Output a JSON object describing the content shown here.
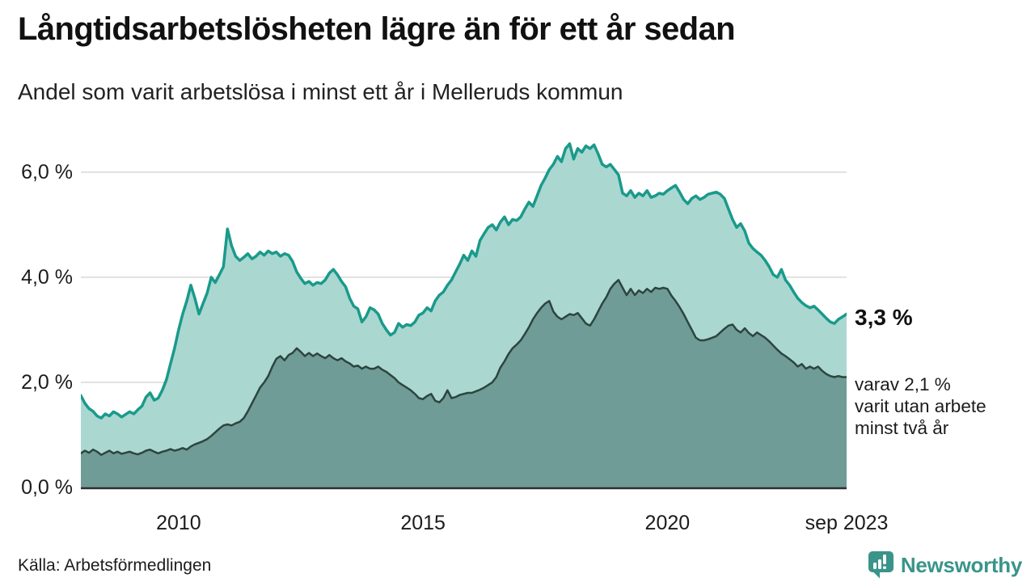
{
  "header": {
    "title": "Långtidsarbetslösheten lägre än för ett år sedan",
    "subtitle": "Andel som varit arbetslösa i minst ett år i Melleruds kommun"
  },
  "annotations": {
    "total_end_label": "3,3 %",
    "detail_line1": "varav 2,1 %",
    "detail_line2": "varit utan arbete",
    "detail_line3": "minst två år"
  },
  "footer": {
    "source": "Källa: Arbetsförmedlingen",
    "logo_text": "Newsworthy"
  },
  "colors": {
    "accent_teal": "#1a9a8b",
    "light_fill": "#abd7d1",
    "dark_fill": "#6f9c96",
    "dark_line": "#2d453f",
    "gridline": "#d9d9d9",
    "axis_line": "#2e2e2e",
    "logo_teal": "#3a948a",
    "text": "#1a1a1a"
  },
  "chart_data": {
    "type": "area",
    "title": "Långtidsarbetslösheten lägre än för ett år sedan",
    "subtitle": "Andel som varit arbetslösa i minst ett år i Melleruds kommun",
    "unit": "%",
    "frequency": "monthly",
    "x_start": "2008-01",
    "x_end": "2023-09",
    "ylim": [
      0,
      6.8
    ],
    "grid": true,
    "legend_position": "none",
    "y_ticks": [
      {
        "label": "6,0 %",
        "value": 6.0
      },
      {
        "label": "4,0 %",
        "value": 4.0
      },
      {
        "label": "2,0 %",
        "value": 2.0
      },
      {
        "label": "0,0 %",
        "value": 0.0
      }
    ],
    "x_ticks": [
      {
        "label": "2010",
        "month_index": 24
      },
      {
        "label": "2015",
        "month_index": 84
      },
      {
        "label": "2020",
        "month_index": 144
      },
      {
        "label": "sep 2023",
        "month_index": 188
      }
    ],
    "series": [
      {
        "name": "Andel som varit arbetslösa minst ett år",
        "end_value": 3.3,
        "end_value_label": "3,3 %",
        "line_color": "#1a9a8b",
        "fill_color": "#abd7d1",
        "line_width": 3.5,
        "values": [
          1.75,
          1.6,
          1.5,
          1.45,
          1.36,
          1.32,
          1.4,
          1.36,
          1.44,
          1.4,
          1.34,
          1.39,
          1.44,
          1.4,
          1.48,
          1.55,
          1.72,
          1.8,
          1.66,
          1.7,
          1.85,
          2.05,
          2.35,
          2.65,
          3.0,
          3.3,
          3.55,
          3.85,
          3.6,
          3.3,
          3.5,
          3.7,
          4.0,
          3.9,
          4.05,
          4.2,
          4.92,
          4.6,
          4.4,
          4.32,
          4.38,
          4.45,
          4.35,
          4.4,
          4.48,
          4.42,
          4.5,
          4.45,
          4.48,
          4.4,
          4.45,
          4.42,
          4.3,
          4.1,
          3.98,
          3.88,
          3.92,
          3.85,
          3.9,
          3.88,
          3.95,
          4.08,
          4.15,
          4.05,
          3.92,
          3.82,
          3.6,
          3.45,
          3.4,
          3.15,
          3.25,
          3.42,
          3.38,
          3.3,
          3.12,
          3.0,
          2.9,
          2.95,
          3.12,
          3.05,
          3.1,
          3.08,
          3.15,
          3.28,
          3.32,
          3.42,
          3.36,
          3.55,
          3.66,
          3.72,
          3.85,
          3.95,
          4.1,
          4.25,
          4.42,
          4.32,
          4.5,
          4.4,
          4.7,
          4.83,
          4.95,
          5.0,
          4.9,
          5.05,
          5.15,
          5.0,
          5.1,
          5.08,
          5.15,
          5.3,
          5.43,
          5.35,
          5.55,
          5.75,
          5.89,
          6.05,
          6.15,
          6.3,
          6.2,
          6.45,
          6.54,
          6.25,
          6.45,
          6.38,
          6.5,
          6.45,
          6.52,
          6.35,
          6.15,
          6.1,
          6.15,
          6.05,
          5.95,
          5.6,
          5.55,
          5.65,
          5.52,
          5.6,
          5.55,
          5.65,
          5.52,
          5.55,
          5.6,
          5.58,
          5.65,
          5.7,
          5.75,
          5.62,
          5.48,
          5.4,
          5.5,
          5.55,
          5.48,
          5.52,
          5.58,
          5.6,
          5.62,
          5.58,
          5.5,
          5.3,
          5.1,
          4.95,
          5.02,
          4.88,
          4.65,
          4.55,
          4.48,
          4.42,
          4.32,
          4.2,
          4.05,
          4.0,
          4.15,
          3.95,
          3.85,
          3.72,
          3.6,
          3.52,
          3.46,
          3.42,
          3.45,
          3.38,
          3.3,
          3.22,
          3.15,
          3.12,
          3.2,
          3.25,
          3.3
        ]
      },
      {
        "name": "varav utan arbete minst två år",
        "end_value": 2.1,
        "end_value_label": "2,1 %",
        "line_color": "#2d453f",
        "fill_color": "#6f9c96",
        "line_width": 2.5,
        "values": [
          0.65,
          0.7,
          0.66,
          0.72,
          0.68,
          0.62,
          0.66,
          0.7,
          0.65,
          0.68,
          0.64,
          0.66,
          0.68,
          0.65,
          0.63,
          0.66,
          0.7,
          0.72,
          0.68,
          0.65,
          0.68,
          0.7,
          0.73,
          0.7,
          0.72,
          0.75,
          0.72,
          0.78,
          0.82,
          0.85,
          0.88,
          0.92,
          0.98,
          1.05,
          1.12,
          1.18,
          1.2,
          1.18,
          1.22,
          1.25,
          1.32,
          1.45,
          1.6,
          1.75,
          1.9,
          2.0,
          2.12,
          2.3,
          2.45,
          2.5,
          2.42,
          2.52,
          2.56,
          2.65,
          2.58,
          2.5,
          2.56,
          2.5,
          2.55,
          2.5,
          2.46,
          2.52,
          2.46,
          2.42,
          2.46,
          2.4,
          2.36,
          2.3,
          2.32,
          2.26,
          2.3,
          2.26,
          2.26,
          2.3,
          2.24,
          2.2,
          2.14,
          2.08,
          2.0,
          1.95,
          1.9,
          1.85,
          1.78,
          1.7,
          1.68,
          1.74,
          1.78,
          1.65,
          1.62,
          1.7,
          1.85,
          1.7,
          1.72,
          1.76,
          1.78,
          1.8,
          1.8,
          1.83,
          1.86,
          1.9,
          1.95,
          2.0,
          2.1,
          2.28,
          2.4,
          2.54,
          2.65,
          2.72,
          2.8,
          2.92,
          3.05,
          3.2,
          3.32,
          3.42,
          3.5,
          3.55,
          3.35,
          3.25,
          3.2,
          3.25,
          3.3,
          3.28,
          3.32,
          3.22,
          3.12,
          3.08,
          3.2,
          3.35,
          3.5,
          3.62,
          3.78,
          3.88,
          3.95,
          3.8,
          3.66,
          3.78,
          3.66,
          3.75,
          3.7,
          3.78,
          3.72,
          3.8,
          3.78,
          3.8,
          3.78,
          3.65,
          3.55,
          3.43,
          3.3,
          3.15,
          3.0,
          2.85,
          2.8,
          2.8,
          2.82,
          2.85,
          2.88,
          2.95,
          3.02,
          3.08,
          3.1,
          3.0,
          2.95,
          3.03,
          2.94,
          2.88,
          2.95,
          2.9,
          2.85,
          2.78,
          2.7,
          2.62,
          2.55,
          2.5,
          2.44,
          2.38,
          2.3,
          2.35,
          2.26,
          2.3,
          2.26,
          2.3,
          2.22,
          2.16,
          2.12,
          2.1,
          2.12,
          2.1,
          2.1
        ]
      }
    ]
  }
}
